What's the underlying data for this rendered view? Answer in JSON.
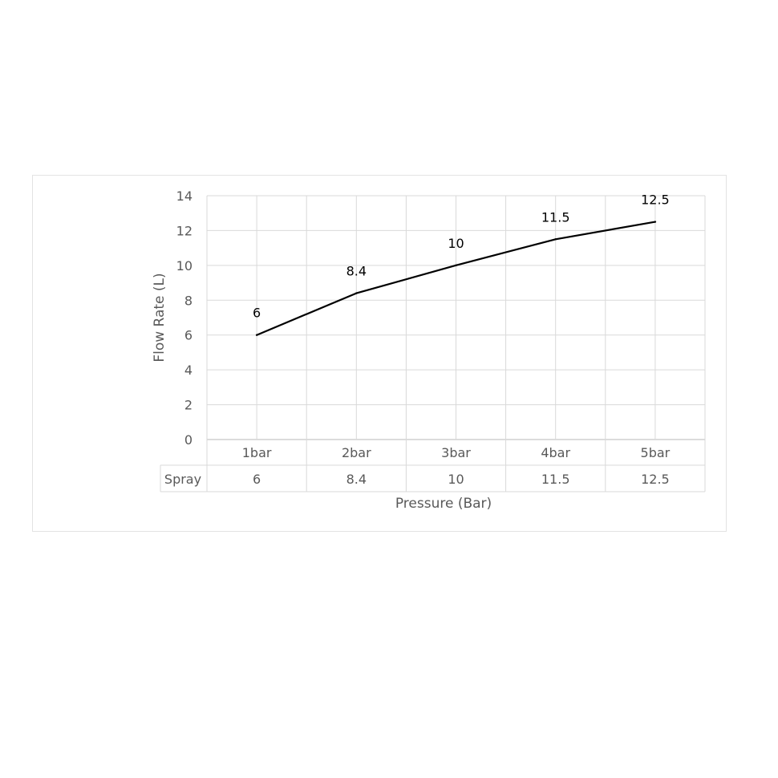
{
  "chart_data": {
    "type": "line",
    "title": "",
    "xlabel": "Pressure (Bar)",
    "ylabel": "Flow Rate (L)",
    "categories": [
      "1bar",
      "2bar",
      "3bar",
      "4bar",
      "5bar"
    ],
    "series": [
      {
        "name": "Spray",
        "values": [
          6,
          8.4,
          10,
          11.5,
          12.5
        ],
        "color": "#000000"
      }
    ],
    "data_labels": [
      "6",
      "8.4",
      "10",
      "11.5",
      "12.5"
    ],
    "table_values": [
      "6",
      "8.4",
      "10",
      "11.5",
      "12.5"
    ],
    "ylim": [
      0,
      14
    ],
    "yticks": [
      "0",
      "2",
      "4",
      "6",
      "8",
      "10",
      "12",
      "14"
    ],
    "grid": true,
    "data_table": true,
    "legend": "none"
  }
}
